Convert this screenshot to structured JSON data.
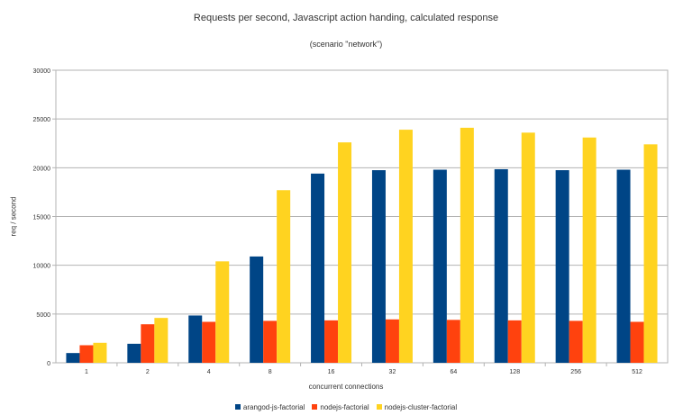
{
  "chart_data": {
    "type": "bar",
    "title": "Requests per second, Javascript action handing, calculated response",
    "subtitle": "(scenario \"network\")",
    "xlabel": "concurrent connections",
    "ylabel": "req / second",
    "ylim": [
      0,
      30000
    ],
    "yticks": [
      "0",
      "5000",
      "10000",
      "15000",
      "20000",
      "25000",
      "30000"
    ],
    "grid": true,
    "legend": "bottom",
    "categories": [
      "1",
      "2",
      "4",
      "8",
      "16",
      "32",
      "64",
      "128",
      "256",
      "512"
    ],
    "series": [
      {
        "name": "arangod-js-factorial",
        "color": "#004586",
        "values": [
          1000,
          1950,
          4850,
          10900,
          19400,
          19750,
          19800,
          19850,
          19750,
          19800
        ]
      },
      {
        "name": "nodejs-factorial",
        "color": "#ff420e",
        "values": [
          1800,
          3950,
          4200,
          4300,
          4350,
          4450,
          4400,
          4350,
          4300,
          4200
        ]
      },
      {
        "name": "nodejs-cluster-factorial",
        "color": "#ffd320",
        "values": [
          2050,
          4600,
          10400,
          17700,
          22600,
          23900,
          24100,
          23600,
          23100,
          22400
        ]
      }
    ]
  }
}
